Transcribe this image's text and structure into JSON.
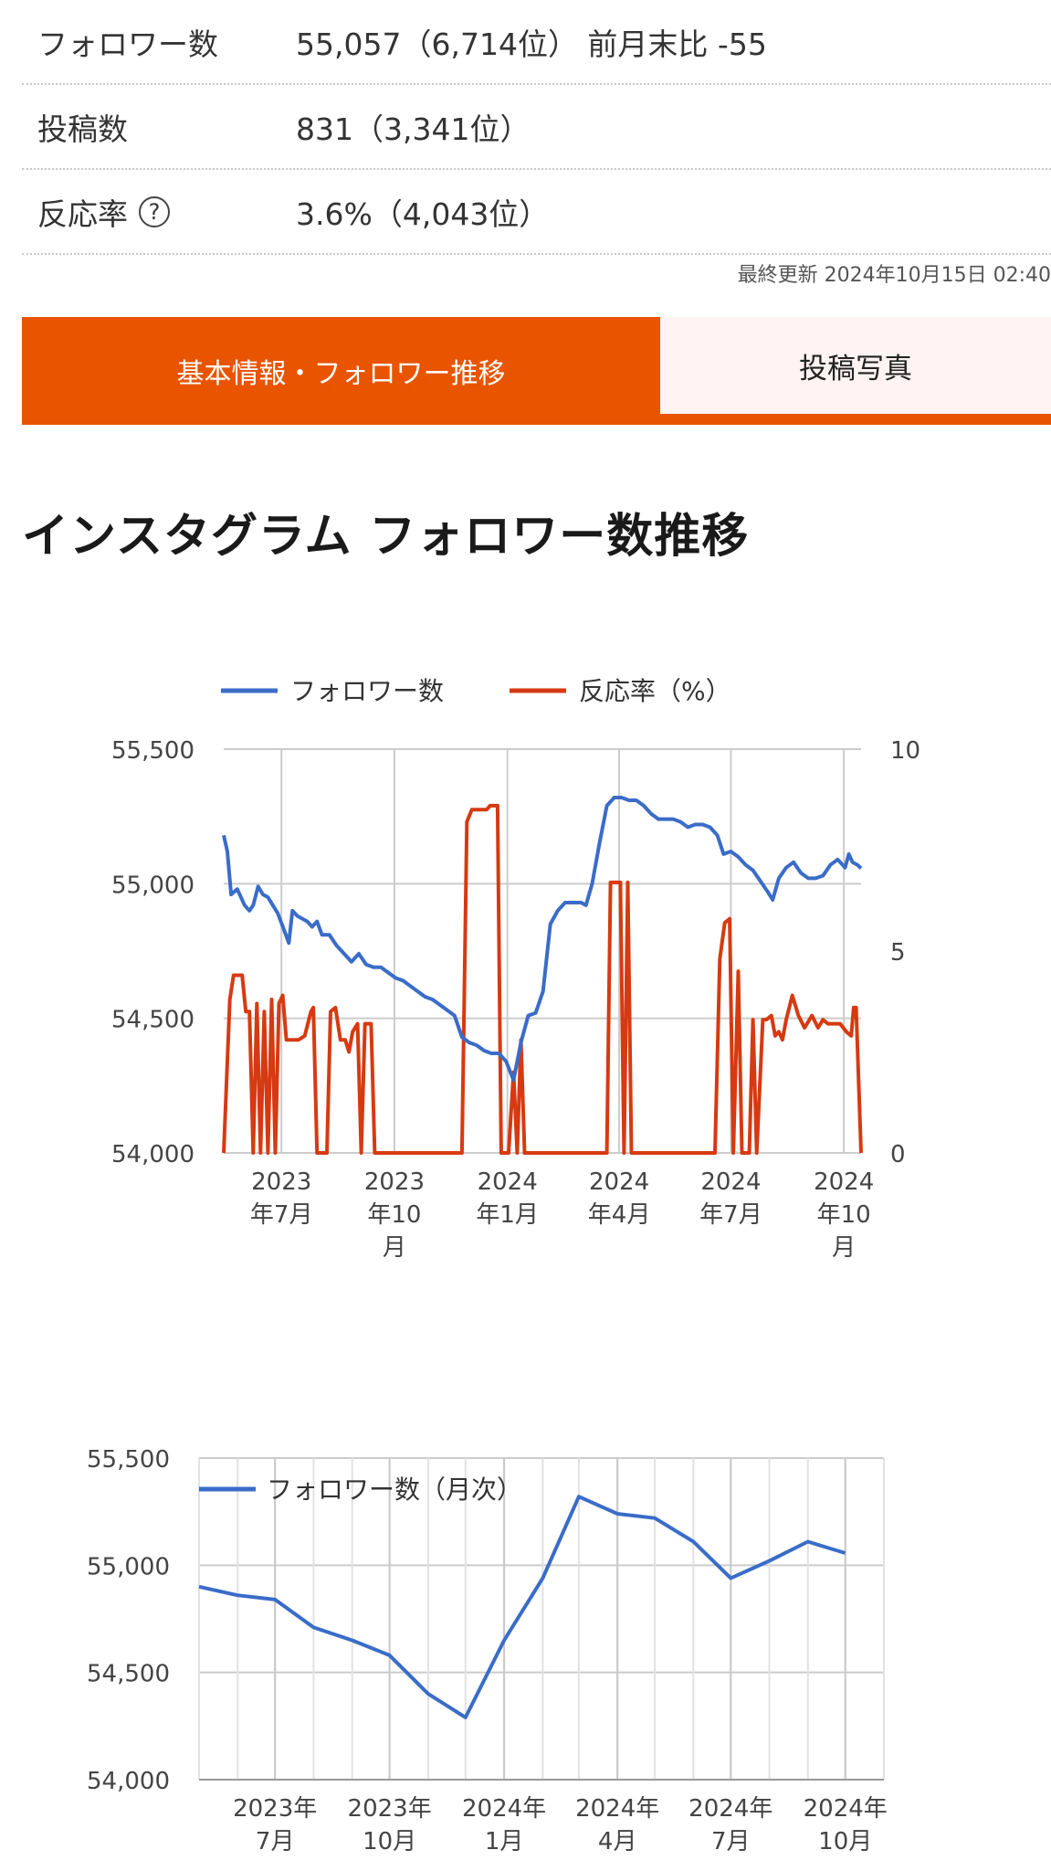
{
  "stats": {
    "followers": {
      "label": "フォロワー数",
      "value": "55,057（6,714位）  前月末比 -55"
    },
    "posts": {
      "label": "投稿数",
      "value": "831（3,341位）"
    },
    "engagement": {
      "label": "反応率",
      "help_icon": "?",
      "value": "3.6%（4,043位）"
    }
  },
  "last_updated": "最終更新 2024年10月15日 02:40",
  "tabs": [
    {
      "label": "基本情報・フォロワー推移",
      "active": true
    },
    {
      "label": "投稿写真",
      "active": false
    }
  ],
  "section_title": "インスタグラム フォロワー数推移",
  "colors": {
    "accent": "#e85400",
    "follower_line": "#3a6cc8",
    "engagement_line": "#d63a12"
  },
  "chart_data": [
    {
      "type": "line",
      "legend_position": "top",
      "grid": true,
      "x_ticks": [
        [
          "2023",
          "年7月"
        ],
        [
          "2023",
          "年10",
          "月"
        ],
        [
          "2024",
          "年1月"
        ],
        [
          "2024",
          "年4月"
        ],
        [
          "2024",
          "年7月"
        ],
        [
          "2024",
          "年10",
          "月"
        ]
      ],
      "x_tick_dates": [
        "2023-07-01",
        "2023-10-01",
        "2024-01-01",
        "2024-04-01",
        "2024-07-01",
        "2024-10-01"
      ],
      "x_range": [
        "2023-05-15",
        "2024-10-15"
      ],
      "y_left": {
        "ticks": [
          "55,500",
          "55,000",
          "54,500",
          "54,000"
        ],
        "range": [
          54000,
          55500
        ]
      },
      "y_right": {
        "ticks": [
          "10",
          "5",
          "0"
        ],
        "range": [
          0,
          10
        ]
      },
      "series": [
        {
          "name": "フォロワー数",
          "axis": "left",
          "points": [
            [
              "2023-05-15",
              55180
            ],
            [
              "2023-05-18",
              55120
            ],
            [
              "2023-05-21",
              54960
            ],
            [
              "2023-05-26",
              54980
            ],
            [
              "2023-06-01",
              54920
            ],
            [
              "2023-06-05",
              54900
            ],
            [
              "2023-06-08",
              54920
            ],
            [
              "2023-06-12",
              54990
            ],
            [
              "2023-06-16",
              54960
            ],
            [
              "2023-06-20",
              54950
            ],
            [
              "2023-06-24",
              54920
            ],
            [
              "2023-06-28",
              54890
            ],
            [
              "2023-07-03",
              54830
            ],
            [
              "2023-07-07",
              54780
            ],
            [
              "2023-07-10",
              54900
            ],
            [
              "2023-07-14",
              54880
            ],
            [
              "2023-07-18",
              54870
            ],
            [
              "2023-07-22",
              54860
            ],
            [
              "2023-07-26",
              54840
            ],
            [
              "2023-07-30",
              54860
            ],
            [
              "2023-08-03",
              54810
            ],
            [
              "2023-08-09",
              54810
            ],
            [
              "2023-08-15",
              54770
            ],
            [
              "2023-08-21",
              54740
            ],
            [
              "2023-08-27",
              54710
            ],
            [
              "2023-09-02",
              54740
            ],
            [
              "2023-09-08",
              54700
            ],
            [
              "2023-09-14",
              54690
            ],
            [
              "2023-09-20",
              54690
            ],
            [
              "2023-09-26",
              54670
            ],
            [
              "2023-10-02",
              54650
            ],
            [
              "2023-10-08",
              54640
            ],
            [
              "2023-10-14",
              54620
            ],
            [
              "2023-10-20",
              54600
            ],
            [
              "2023-10-26",
              54580
            ],
            [
              "2023-11-01",
              54570
            ],
            [
              "2023-11-07",
              54550
            ],
            [
              "2023-11-13",
              54530
            ],
            [
              "2023-11-19",
              54510
            ],
            [
              "2023-11-25",
              54430
            ],
            [
              "2023-12-01",
              54410
            ],
            [
              "2023-12-07",
              54400
            ],
            [
              "2023-12-13",
              54380
            ],
            [
              "2023-12-19",
              54370
            ],
            [
              "2023-12-25",
              54370
            ],
            [
              "2023-12-31",
              54340
            ],
            [
              "2024-01-06",
              54270
            ],
            [
              "2024-01-12",
              54410
            ],
            [
              "2024-01-18",
              54510
            ],
            [
              "2024-01-24",
              54520
            ],
            [
              "2024-01-30",
              54600
            ],
            [
              "2024-02-05",
              54850
            ],
            [
              "2024-02-11",
              54900
            ],
            [
              "2024-02-17",
              54930
            ],
            [
              "2024-02-23",
              54930
            ],
            [
              "2024-03-01",
              54930
            ],
            [
              "2024-03-05",
              54920
            ],
            [
              "2024-03-10",
              55000
            ],
            [
              "2024-03-16",
              55150
            ],
            [
              "2024-03-22",
              55290
            ],
            [
              "2024-03-28",
              55320
            ],
            [
              "2024-04-03",
              55320
            ],
            [
              "2024-04-09",
              55310
            ],
            [
              "2024-04-15",
              55310
            ],
            [
              "2024-04-21",
              55290
            ],
            [
              "2024-04-27",
              55260
            ],
            [
              "2024-05-03",
              55240
            ],
            [
              "2024-05-09",
              55240
            ],
            [
              "2024-05-15",
              55240
            ],
            [
              "2024-05-21",
              55230
            ],
            [
              "2024-05-27",
              55210
            ],
            [
              "2024-06-02",
              55220
            ],
            [
              "2024-06-08",
              55220
            ],
            [
              "2024-06-14",
              55210
            ],
            [
              "2024-06-20",
              55180
            ],
            [
              "2024-06-25",
              55110
            ],
            [
              "2024-07-01",
              55120
            ],
            [
              "2024-07-07",
              55100
            ],
            [
              "2024-07-13",
              55070
            ],
            [
              "2024-07-19",
              55050
            ],
            [
              "2024-07-25",
              55010
            ],
            [
              "2024-07-31",
              54970
            ],
            [
              "2024-08-04",
              54940
            ],
            [
              "2024-08-09",
              55020
            ],
            [
              "2024-08-15",
              55060
            ],
            [
              "2024-08-21",
              55080
            ],
            [
              "2024-08-27",
              55040
            ],
            [
              "2024-09-02",
              55020
            ],
            [
              "2024-09-08",
              55020
            ],
            [
              "2024-09-14",
              55030
            ],
            [
              "2024-09-20",
              55070
            ],
            [
              "2024-09-26",
              55090
            ],
            [
              "2024-10-02",
              55060
            ],
            [
              "2024-10-05",
              55110
            ],
            [
              "2024-10-08",
              55080
            ],
            [
              "2024-10-12",
              55070
            ],
            [
              "2024-10-15",
              55057
            ]
          ]
        },
        {
          "name": "反応率（%）",
          "axis": "right",
          "points": [
            [
              "2023-05-15",
              0
            ],
            [
              "2023-05-20",
              3.8
            ],
            [
              "2023-05-23",
              4.4
            ],
            [
              "2023-05-30",
              4.4
            ],
            [
              "2023-06-02",
              3.5
            ],
            [
              "2023-06-05",
              3.5
            ],
            [
              "2023-06-08",
              0
            ],
            [
              "2023-06-11",
              3.7
            ],
            [
              "2023-06-14",
              0
            ],
            [
              "2023-06-17",
              3.5
            ],
            [
              "2023-06-20",
              0
            ],
            [
              "2023-06-23",
              3.8
            ],
            [
              "2023-06-26",
              0
            ],
            [
              "2023-06-29",
              3.7
            ],
            [
              "2023-07-02",
              3.9
            ],
            [
              "2023-07-05",
              2.8
            ],
            [
              "2023-07-10",
              2.8
            ],
            [
              "2023-07-15",
              2.8
            ],
            [
              "2023-07-20",
              2.9
            ],
            [
              "2023-07-25",
              3.5
            ],
            [
              "2023-07-27",
              3.6
            ],
            [
              "2023-07-30",
              0
            ],
            [
              "2023-08-07",
              0
            ],
            [
              "2023-08-10",
              3.5
            ],
            [
              "2023-08-14",
              3.6
            ],
            [
              "2023-08-18",
              2.8
            ],
            [
              "2023-08-22",
              2.8
            ],
            [
              "2023-08-25",
              2.5
            ],
            [
              "2023-08-28",
              3.0
            ],
            [
              "2023-09-01",
              3.2
            ],
            [
              "2023-09-04",
              0
            ],
            [
              "2023-09-07",
              3.2
            ],
            [
              "2023-09-12",
              3.2
            ],
            [
              "2023-09-15",
              0
            ],
            [
              "2023-11-25",
              0
            ],
            [
              "2023-11-29",
              8.2
            ],
            [
              "2023-12-03",
              8.5
            ],
            [
              "2023-12-15",
              8.5
            ],
            [
              "2023-12-18",
              8.6
            ],
            [
              "2023-12-24",
              8.6
            ],
            [
              "2023-12-27",
              0
            ],
            [
              "2024-01-02",
              0
            ],
            [
              "2024-01-06",
              2.0
            ],
            [
              "2024-01-09",
              0
            ],
            [
              "2024-01-12",
              2.8
            ],
            [
              "2024-01-15",
              0
            ],
            [
              "2024-03-22",
              0
            ],
            [
              "2024-03-25",
              6.7
            ],
            [
              "2024-04-02",
              6.7
            ],
            [
              "2024-04-05",
              0
            ],
            [
              "2024-04-08",
              6.7
            ],
            [
              "2024-04-11",
              0
            ],
            [
              "2024-06-18",
              0
            ],
            [
              "2024-06-22",
              4.8
            ],
            [
              "2024-06-26",
              5.7
            ],
            [
              "2024-06-30",
              5.8
            ],
            [
              "2024-07-03",
              0
            ],
            [
              "2024-07-07",
              4.5
            ],
            [
              "2024-07-10",
              0
            ],
            [
              "2024-07-16",
              0
            ],
            [
              "2024-07-19",
              3.3
            ],
            [
              "2024-07-22",
              0
            ],
            [
              "2024-07-27",
              3.3
            ],
            [
              "2024-07-30",
              3.3
            ],
            [
              "2024-08-03",
              3.4
            ],
            [
              "2024-08-06",
              2.9
            ],
            [
              "2024-08-09",
              3.0
            ],
            [
              "2024-08-12",
              2.8
            ],
            [
              "2024-08-15",
              3.3
            ],
            [
              "2024-08-20",
              3.9
            ],
            [
              "2024-08-25",
              3.4
            ],
            [
              "2024-08-30",
              3.1
            ],
            [
              "2024-09-05",
              3.4
            ],
            [
              "2024-09-10",
              3.1
            ],
            [
              "2024-09-14",
              3.3
            ],
            [
              "2024-09-18",
              3.2
            ],
            [
              "2024-09-23",
              3.2
            ],
            [
              "2024-09-28",
              3.2
            ],
            [
              "2024-10-03",
              3.0
            ],
            [
              "2024-10-07",
              2.9
            ],
            [
              "2024-10-09",
              3.6
            ],
            [
              "2024-10-11",
              3.6
            ],
            [
              "2024-10-15",
              0
            ]
          ]
        }
      ]
    },
    {
      "type": "line",
      "legend_position": "top-left",
      "grid": true,
      "x_ticks": [
        [
          "2023年",
          "7月"
        ],
        [
          "2023年",
          "10月"
        ],
        [
          "2024年",
          "1月"
        ],
        [
          "2024年",
          "4月"
        ],
        [
          "2024年",
          "7月"
        ],
        [
          "2024年",
          "10月"
        ]
      ],
      "x_tick_dates": [
        "2023-07-01",
        "2023-10-01",
        "2024-01-01",
        "2024-04-01",
        "2024-07-01",
        "2024-10-01"
      ],
      "x_range": [
        "2023-05-01",
        "2024-11-01"
      ],
      "y_left": {
        "ticks": [
          "55,500",
          "55,000",
          "54,500",
          "54,000"
        ],
        "range": [
          54000,
          55500
        ]
      },
      "series": [
        {
          "name": "フォロワー数（月次）",
          "axis": "left",
          "points": [
            [
              "2023-05-01",
              54900
            ],
            [
              "2023-06-01",
              54860
            ],
            [
              "2023-07-01",
              54840
            ],
            [
              "2023-08-01",
              54710
            ],
            [
              "2023-09-01",
              54650
            ],
            [
              "2023-10-01",
              54580
            ],
            [
              "2023-11-01",
              54400
            ],
            [
              "2023-12-01",
              54290
            ],
            [
              "2024-01-01",
              54650
            ],
            [
              "2024-02-01",
              54940
            ],
            [
              "2024-03-01",
              55320
            ],
            [
              "2024-04-01",
              55240
            ],
            [
              "2024-05-01",
              55220
            ],
            [
              "2024-06-01",
              55110
            ],
            [
              "2024-07-01",
              54940
            ],
            [
              "2024-08-01",
              55020
            ],
            [
              "2024-09-01",
              55110
            ],
            [
              "2024-10-01",
              55057
            ]
          ]
        }
      ]
    }
  ]
}
